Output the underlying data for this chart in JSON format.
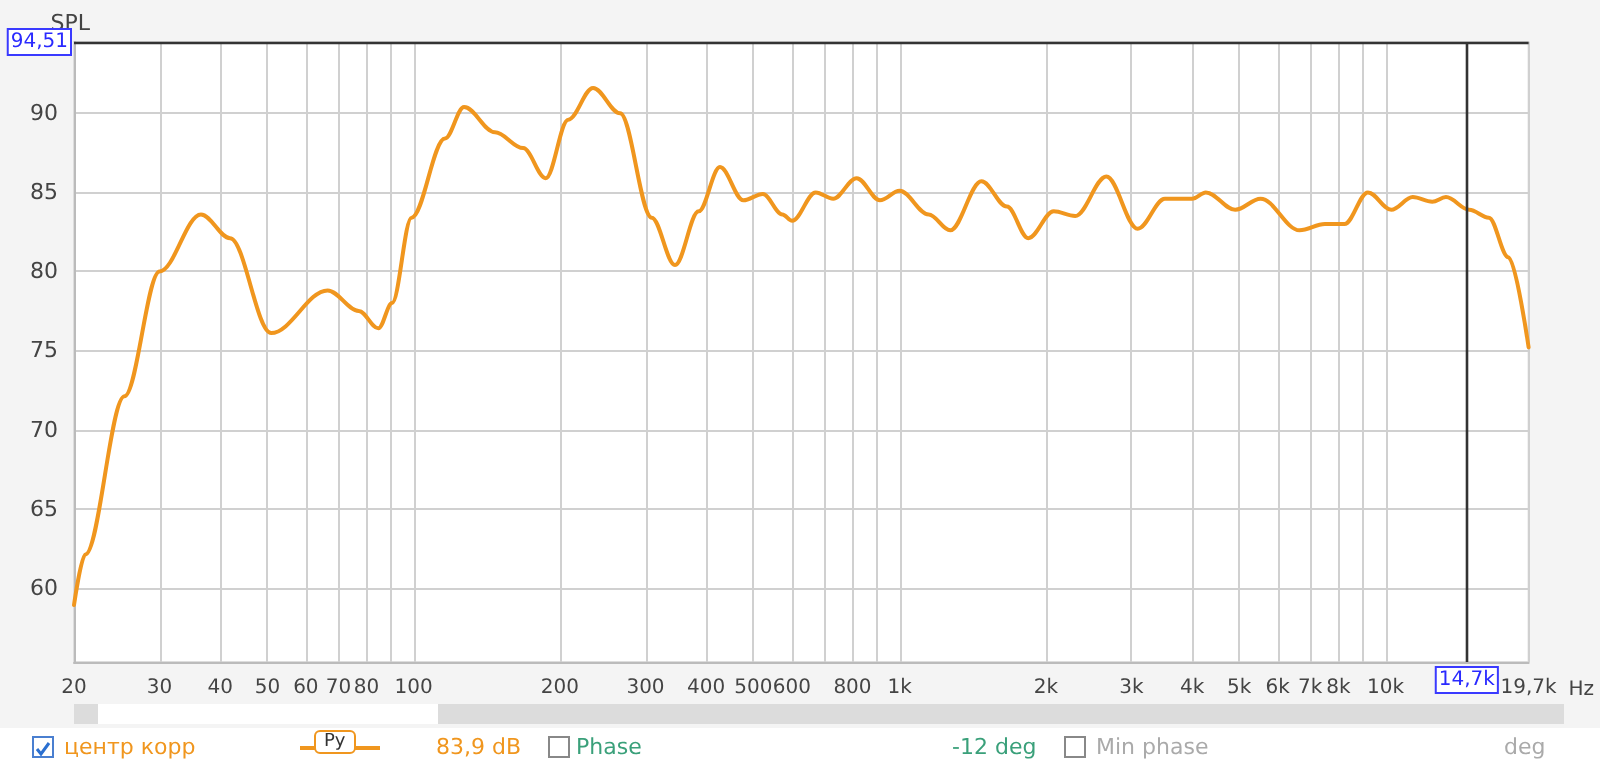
{
  "chart_data": {
    "type": "line",
    "ylabel": "SPL",
    "legend": "bottom",
    "grid": true,
    "log": "x",
    "marker": "none",
    "line_style": "solid",
    "xlim": [
      20,
      19700
    ],
    "ylim": [
      55.3,
      94.51
    ],
    "xticks": [
      20,
      30,
      40,
      50,
      60,
      70,
      80,
      {
        "value": 90,
        "label": null
      },
      100,
      200,
      300,
      400,
      500,
      600,
      {
        "value": 700,
        "label": null
      },
      800,
      {
        "value": 900,
        "label": null
      },
      {
        "value": 1000,
        "label": "1k"
      },
      {
        "value": 2000,
        "label": "2k"
      },
      {
        "value": 3000,
        "label": "3k"
      },
      {
        "value": 4000,
        "label": "4k"
      },
      {
        "value": 5000,
        "label": "5k"
      },
      {
        "value": 6000,
        "label": "6k"
      },
      {
        "value": 7000,
        "label": "7k"
      },
      {
        "value": 8000,
        "label": "8k"
      },
      {
        "value": 9000,
        "label": null
      },
      {
        "value": 10000,
        "label": "10k"
      },
      {
        "value": 19700,
        "label": "19,7k"
      }
    ],
    "xlabel": "Hz",
    "yticks": [
      60,
      65,
      70,
      75,
      80,
      85,
      90
    ],
    "ref_lines": [
      {
        "axis": "y",
        "value": 94.51,
        "label": "94,51",
        "color": "#333333"
      },
      {
        "axis": "x",
        "value": 14700,
        "label": "14,7k",
        "color": "#333333"
      }
    ],
    "annotations": [
      "Py",
      "83,9 dB",
      "Phase",
      "-12 deg",
      "Min phase",
      "deg"
    ],
    "series": [
      {
        "name": "центр корр",
        "color": "#f0961e",
        "x": [
          20,
          21.1,
          25.4,
          30,
          36.5,
          41.9,
          50.9,
          66.5,
          77.1,
          84.6,
          90.3,
          99,
          116,
          127,
          147,
          168,
          187,
          208,
          234,
          266,
          309,
          345,
          386,
          427,
          477,
          523,
          574,
          601,
          672,
          730,
          816,
          911,
          1000,
          1148,
          1271,
          1474,
          1663,
          1840,
          2076,
          2298,
          2664,
          3090,
          3516,
          4000,
          4268,
          4906,
          5532,
          6654,
          7504,
          8234,
          9200,
          10276,
          11378,
          12480,
          13316,
          14876,
          16316,
          17898,
          19700
        ],
        "values": [
          58.9,
          62.1,
          72.1,
          80,
          83.6,
          82.1,
          76.1,
          78.8,
          77.5,
          76.4,
          78,
          83.4,
          88.4,
          90.4,
          88.8,
          87.8,
          85.9,
          89.6,
          91.6,
          90,
          83.4,
          80.4,
          83.8,
          86.6,
          84.5,
          84.9,
          83.6,
          83.2,
          85,
          84.6,
          85.9,
          84.5,
          85.1,
          83.6,
          82.6,
          85.7,
          84.1,
          82.1,
          83.8,
          83.5,
          86,
          82.7,
          84.6,
          84.6,
          85,
          83.9,
          84.6,
          82.6,
          83,
          83,
          85,
          83.9,
          84.7,
          84.4,
          84.7,
          83.9,
          83.4,
          80.9,
          75.2
        ]
      }
    ]
  }
}
